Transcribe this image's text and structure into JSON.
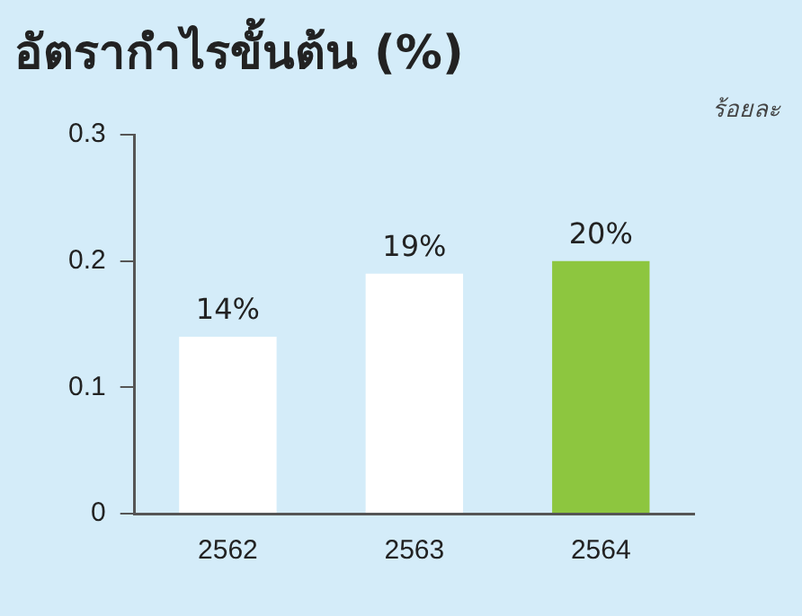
{
  "chart_data": {
    "type": "bar",
    "title": "อัตรากำไรขั้นต้น (%)",
    "ylabel": "ร้อยละ",
    "categories": [
      "2562",
      "2563",
      "2564"
    ],
    "values": [
      0.14,
      0.19,
      0.2
    ],
    "colors": [
      "#ffffff",
      "#ffffff",
      "#8dc63f"
    ],
    "value_labels": [
      "14%",
      "19%",
      "20%"
    ],
    "ylim": [
      0,
      0.3
    ],
    "yticks": [
      0,
      0.1,
      0.2,
      0.3
    ],
    "grid": false,
    "legend": false
  }
}
